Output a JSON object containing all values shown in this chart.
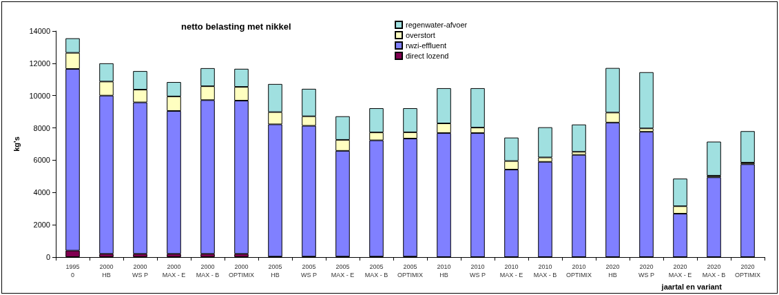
{
  "chart_data": {
    "type": "bar",
    "title": "netto belasting met nikkel",
    "xlabel": "jaartal en variant",
    "ylabel": "kg's",
    "categories": [
      "1995\n0",
      "2000\nHB",
      "2000\nWS P",
      "2000\nMAX - E",
      "2000\nMAX - B",
      "2000\nOPTIMIX",
      "2005\nHB",
      "2005\nWS P",
      "2005\nMAX - E",
      "2005\nMAX - B",
      "2005\nOPTIMIX",
      "2010\nHB",
      "2010\nWS P",
      "2010\nMAX - E",
      "2010\nMAX - B",
      "2010\nOPTIMIX",
      "2020\nHB",
      "2020\nWS P",
      "2020\nMAX - E",
      "2020\nMAX - B",
      "2020\nOPTIMIX"
    ],
    "stacked": true,
    "series": [
      {
        "name": "direct lozend",
        "color": "#800050",
        "values": [
          400,
          200,
          200,
          200,
          200,
          200,
          30,
          30,
          30,
          30,
          30,
          0,
          0,
          0,
          0,
          0,
          0,
          0,
          0,
          0,
          0
        ]
      },
      {
        "name": "rwzi-effluent",
        "color": "#8080ff",
        "values": [
          11250,
          9800,
          9380,
          8850,
          9520,
          9490,
          8190,
          8100,
          6550,
          7200,
          7310,
          7680,
          7680,
          5420,
          5900,
          6330,
          8330,
          7760,
          2690,
          4940,
          5750
        ]
      },
      {
        "name": "overstort",
        "color": "#ffffc0",
        "values": [
          1000,
          870,
          790,
          900,
          860,
          850,
          760,
          590,
          680,
          490,
          390,
          600,
          340,
          530,
          270,
          190,
          620,
          210,
          460,
          100,
          100
        ]
      },
      {
        "name": "regenwater-afvoer",
        "color": "#a0e0e0",
        "values": [
          900,
          1130,
          1150,
          890,
          1120,
          1120,
          1740,
          1700,
          1460,
          1500,
          1490,
          2180,
          2440,
          1450,
          1870,
          1690,
          2760,
          3480,
          1710,
          2110,
          1950
        ]
      }
    ],
    "ylim": [
      0,
      14000
    ],
    "yticks": [
      0,
      2000,
      4000,
      6000,
      8000,
      10000,
      12000,
      14000
    ],
    "grid": false,
    "legend": "top"
  }
}
